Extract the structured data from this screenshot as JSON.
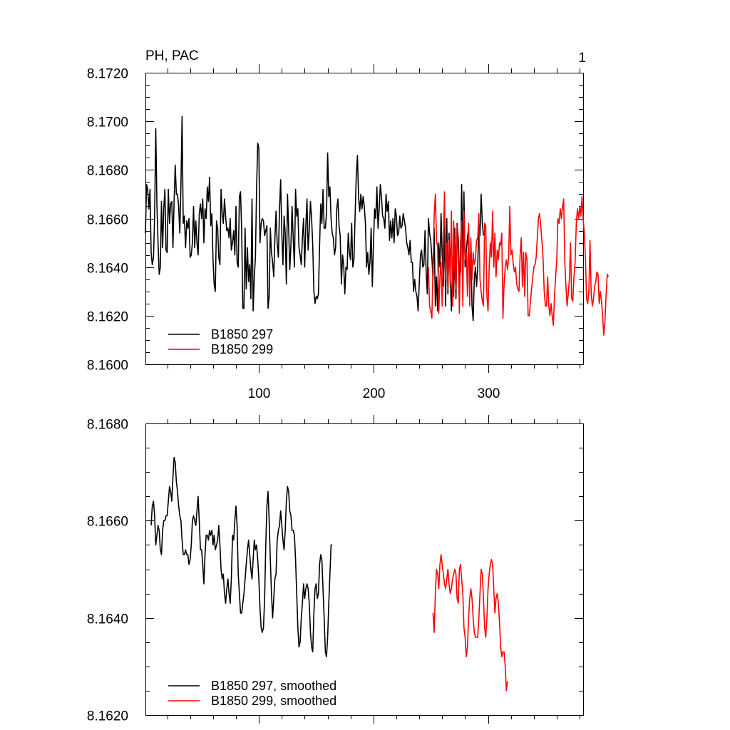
{
  "chart_data": [
    {
      "type": "line",
      "title_left": "PH, PAC",
      "title_right": "1",
      "ylim": [
        8.16,
        8.172
      ],
      "yticks": [
        8.16,
        8.162,
        8.164,
        8.166,
        8.168,
        8.17,
        8.172
      ],
      "ytick_labels": [
        "8.1600",
        "8.1620",
        "8.1640",
        "8.1660",
        "8.1680",
        "8.1700",
        "8.1720"
      ],
      "xlim": [
        1,
        383
      ],
      "xticks": [
        100,
        200,
        300
      ],
      "xtick_labels": [
        "100",
        "200",
        "300"
      ],
      "xtick_labels_position": "bottom",
      "legend_position": "bottom-left",
      "series": [
        {
          "name": "B1850 297",
          "color": "#000000",
          "x_start": 1,
          "values": [
            8.1654,
            8.1674,
            8.1672,
            8.1664,
            8.1672,
            8.1646,
            8.1641,
            8.1644,
            8.1661,
            8.1697,
            8.1666,
            8.165,
            8.1637,
            8.164,
            8.1667,
            8.1648,
            8.1664,
            8.1672,
            8.1647,
            8.1646,
            8.1672,
            8.1658,
            8.1666,
            8.1667,
            8.1648,
            8.1667,
            8.1682,
            8.167,
            8.167,
            8.1665,
            8.1654,
            8.1674,
            8.1702,
            8.1658,
            8.1661,
            8.1648,
            8.1659,
            8.1656,
            8.166,
            8.1644,
            8.1645,
            8.165,
            8.1665,
            8.1648,
            8.1659,
            8.165,
            8.1645,
            8.1662,
            8.1666,
            8.166,
            8.1668,
            8.165,
            8.1664,
            8.166,
            8.1673,
            8.1667,
            8.1677,
            8.1657,
            8.1662,
            8.1643,
            8.1633,
            8.163,
            8.1659,
            8.1656,
            8.1644,
            8.1641,
            8.1672,
            8.1662,
            8.1658,
            8.1668,
            8.1661,
            8.1655,
            8.1656,
            8.1652,
            8.166,
            8.1647,
            8.165,
            8.1655,
            8.1645,
            8.1665,
            8.1642,
            8.164,
            8.1669,
            8.1671,
            8.1655,
            8.1623,
            8.1623,
            8.1656,
            8.1631,
            8.1648,
            8.1634,
            8.1641,
            8.1627,
            8.1668,
            8.1622,
            8.1636,
            8.1644,
            8.1672,
            8.1691,
            8.1689,
            8.165,
            8.1658,
            8.166,
            8.1659,
            8.1653,
            8.1655,
            8.1657,
            8.1623,
            8.1628,
            8.1656,
            8.1646,
            8.1642,
            8.1636,
            8.1652,
            8.1663,
            8.165,
            8.1644,
            8.1664,
            8.1676,
            8.1654,
            8.1641,
            8.1661,
            8.1654,
            8.1633,
            8.167,
            8.1656,
            8.1639,
            8.1649,
            8.1665,
            8.1652,
            8.164,
            8.1672,
            8.1661,
            8.1664,
            8.1648,
            8.1645,
            8.1641,
            8.1652,
            8.166,
            8.164,
            8.1657,
            8.1668,
            8.1647,
            8.1655,
            8.1667,
            8.166,
            8.1649,
            8.163,
            8.1625,
            8.1628,
            8.1627,
            8.1629,
            8.1649,
            8.1666,
            8.1658,
            8.1672,
            8.1656,
            8.1656,
            8.1662,
            8.1687,
            8.1669,
            8.1673,
            8.166,
            8.1654,
            8.1652,
            8.1645,
            8.1648,
            8.1664,
            8.1668,
            8.1657,
            8.1653,
            8.1633,
            8.1645,
            8.1641,
            8.1629,
            8.164,
            8.1639,
            8.1654,
            8.1646,
            8.1643,
            8.1658,
            8.164,
            8.1643,
            8.1661,
            8.1677,
            8.1686,
            8.1669,
            8.1663,
            8.167,
            8.1664,
            8.1669,
            8.1665,
            8.1658,
            8.164,
            8.1646,
            8.1637,
            8.1642,
            8.1656,
            8.1632,
            8.165,
            8.1664,
            8.166,
            8.1673,
            8.1656,
            8.1664,
            8.1674,
            8.1669,
            8.1661,
            8.166,
            8.1656,
            8.167,
            8.1663,
            8.1667,
            8.1651,
            8.1659,
            8.1652,
            8.166,
            8.165,
            8.1664,
            8.1661,
            8.1653,
            8.1654,
            8.1661,
            8.1656,
            8.1657,
            8.1662,
            8.1659,
            8.1656,
            8.165,
            8.1648,
            8.1645,
            8.1651,
            8.1642,
            8.1642,
            8.163,
            8.1635,
            8.163,
            8.1628,
            8.1622,
            8.1634,
            8.1645,
            8.1647,
            8.164,
            8.1641,
            8.1655,
            8.1638,
            8.1629,
            8.166,
            8.1654,
            8.1651,
            8.1644,
            8.1635,
            8.1656,
            8.1624,
            8.1636,
            8.1622,
            8.165,
            8.164,
            8.1662,
            8.1645,
            8.1632,
            8.1659,
            8.1624,
            8.166,
            8.1629,
            8.1654,
            8.1637,
            8.1622,
            8.1641,
            8.1628,
            8.1656,
            8.1627,
            8.1658,
            8.1652,
            8.1635,
            8.1638,
            8.1674,
            8.1639,
            8.1671,
            8.164,
            8.1647,
            8.1652,
            8.1656,
            8.1628,
            8.165,
            8.1624,
            8.1618,
            8.1635,
            8.164,
            8.1632,
            8.164,
            8.1658,
            8.1653,
            8.167,
            8.1658,
            8.1653
          ],
          "values_note": "first ~305 steps; series ends near x=303"
        },
        {
          "name": "B1850 299",
          "color": "#ff0000",
          "x_start": 248,
          "values": [
            8.164,
            8.1624,
            8.1622,
            8.1619,
            8.164,
            8.1661,
            8.167,
            8.1651,
            8.1648,
            8.1621,
            8.1636,
            8.1642,
            8.1624,
            8.165,
            8.1671,
            8.1635,
            8.165,
            8.1631,
            8.1651,
            8.1633,
            8.1663,
            8.1624,
            8.1659,
            8.1637,
            8.1631,
            8.1657,
            8.1645,
            8.1621,
            8.165,
            8.1659,
            8.1624,
            8.1663,
            8.1643,
            8.1646,
            8.1628,
            8.1658,
            8.1624,
            8.1652,
            8.1635,
            8.1646,
            8.1641,
            8.1643,
            8.1651,
            8.1652,
            8.1662,
            8.1635,
            8.163,
            8.1626,
            8.1624,
            8.1658,
            8.1657,
            8.1628,
            8.1622,
            8.164,
            8.165,
            8.1644,
            8.1663,
            8.164,
            8.1654,
            8.1636,
            8.1647,
            8.1643,
            8.165,
            8.1649,
            8.1654,
            8.1619,
            8.1633,
            8.164,
            8.1643,
            8.1639,
            8.1644,
            8.1665,
            8.1645,
            8.1647,
            8.1641,
            8.1638,
            8.164,
            8.1633,
            8.1631,
            8.163,
            8.1645,
            8.1652,
            8.1632,
            8.1646,
            8.1628,
            8.1646,
            8.1643,
            8.162,
            8.162,
            8.1626,
            8.1631,
            8.1636,
            8.164,
            8.1641,
            8.1644,
            8.1652,
            8.166,
            8.1662,
            8.1657,
            8.1651,
            8.1644,
            8.163,
            8.1624,
            8.1624,
            8.1636,
            8.1624,
            8.162,
            8.1625,
            8.162,
            8.1616,
            8.1628,
            8.1636,
            8.1643,
            8.166,
            8.1658,
            8.1664,
            8.166,
            8.1665,
            8.1668,
            8.1642,
            8.1632,
            8.1624,
            8.1629,
            8.1635,
            8.165,
            8.1627,
            8.1626,
            8.1636,
            8.1642,
            8.1658,
            8.1664,
            8.166,
            8.1665,
            8.1661,
            8.1669,
            8.166,
            8.1654,
            8.1644,
            8.1627,
            8.1625,
            8.163,
            8.1651,
            8.1629,
            8.1624,
            8.1627,
            8.1632,
            8.1634,
            8.1638,
            8.1637,
            8.1625,
            8.163,
            8.1626,
            8.162,
            8.1612,
            8.1617,
            8.1628,
            8.1637,
            8.1636
          ]
        }
      ],
      "legend": [
        "B1850 297",
        "B1850 299"
      ]
    },
    {
      "type": "line",
      "ylim": [
        8.162,
        8.168
      ],
      "yticks": [
        8.162,
        8.164,
        8.166,
        8.168
      ],
      "ytick_labels": [
        "8.1620",
        "8.1640",
        "8.1660",
        "8.1680"
      ],
      "xlim": [
        1,
        383
      ],
      "xticks": [
        100,
        200,
        300
      ],
      "legend_position": "bottom-left",
      "series": [
        {
          "name": "B1850 297, smoothed",
          "color": "#000000",
          "x_start": 6,
          "values": [
            8.1659,
            8.1663,
            8.1664,
            8.1661,
            8.1655,
            8.1657,
            8.1659,
            8.1658,
            8.1654,
            8.1653,
            8.1658,
            8.166,
            8.166,
            8.1661,
            8.1661,
            8.1664,
            8.1667,
            8.1666,
            8.1664,
            8.1669,
            8.1673,
            8.1672,
            8.1668,
            8.1666,
            8.1663,
            8.1661,
            8.166,
            8.1656,
            8.1653,
            8.1653,
            8.1654,
            8.1653,
            8.1653,
            8.1651,
            8.1652,
            8.1655,
            8.166,
            8.1661,
            8.166,
            8.1659,
            8.1662,
            8.1665,
            8.166,
            8.1654,
            8.1654,
            8.1651,
            8.1647,
            8.1653,
            8.1657,
            8.1657,
            8.1656,
            8.1658,
            8.1657,
            8.1658,
            8.1655,
            8.1657,
            8.1654,
            8.1655,
            8.1656,
            8.1659,
            8.1655,
            8.165,
            8.1648,
            8.1649,
            8.1645,
            8.1643,
            8.1646,
            8.1648,
            8.1645,
            8.1643,
            8.1648,
            8.1657,
            8.1656,
            8.166,
            8.1663,
            8.1659,
            8.1649,
            8.1645,
            8.1641,
            8.1641,
            8.1643,
            8.1645,
            8.1648,
            8.1651,
            8.1654,
            8.1656,
            8.1653,
            8.165,
            8.1648,
            8.1652,
            8.1656,
            8.1654,
            8.1655,
            8.1652,
            8.1648,
            8.1642,
            8.1638,
            8.1637,
            8.1638,
            8.1644,
            8.1655,
            8.1663,
            8.1666,
            8.166,
            8.1652,
            8.1645,
            8.164,
            8.1644,
            8.1648,
            8.1649,
            8.1656,
            8.1658,
            8.1659,
            8.1662,
            8.1659,
            8.1656,
            8.1654,
            8.1658,
            8.1664,
            8.1667,
            8.1666,
            8.1662,
            8.1661,
            8.1658,
            8.1658,
            8.1657,
            8.1652,
            8.1645,
            8.1638,
            8.1634,
            8.1635,
            8.164,
            8.1643,
            8.1647,
            8.1644,
            8.1646,
            8.1647,
            8.1646,
            8.1643,
            8.1637,
            8.1634,
            8.1633,
            8.1641,
            8.1646,
            8.1647,
            8.1644,
            8.1645,
            8.1651,
            8.1653,
            8.1652,
            8.1646,
            8.164,
            8.1633,
            8.1632,
            8.1636,
            8.1643,
            8.1649,
            8.1655,
            8.1655
          ]
        },
        {
          "name": "B1850 299, smoothed",
          "color": "#ff0000",
          "x_start": 252,
          "values": [
            8.1641,
            8.1637,
            8.1645,
            8.165,
            8.1649,
            8.1646,
            8.1651,
            8.1653,
            8.1651,
            8.1649,
            8.1647,
            8.1646,
            8.1648,
            8.165,
            8.1647,
            8.1645,
            8.1646,
            8.1648,
            8.1649,
            8.165,
            8.1649,
            8.1644,
            8.1643,
            8.165,
            8.1651,
            8.1648,
            8.1645,
            8.1638,
            8.1636,
            8.1632,
            8.1634,
            8.164,
            8.1644,
            8.1646,
            8.1644,
            8.164,
            8.1637,
            8.1636,
            8.1636,
            8.1636,
            8.164,
            8.1645,
            8.165,
            8.1649,
            8.1644,
            8.1638,
            8.1636,
            8.164,
            8.1646,
            8.1649,
            8.1651,
            8.1652,
            8.1651,
            8.1646,
            8.1641,
            8.1644,
            8.1645,
            8.1643,
            8.1639,
            8.1634,
            8.1632,
            8.1633,
            8.1633,
            8.163,
            8.1625,
            8.1627
          ]
        }
      ],
      "legend": [
        "B1850 297, smoothed",
        "B1850 299, smoothed"
      ]
    }
  ]
}
